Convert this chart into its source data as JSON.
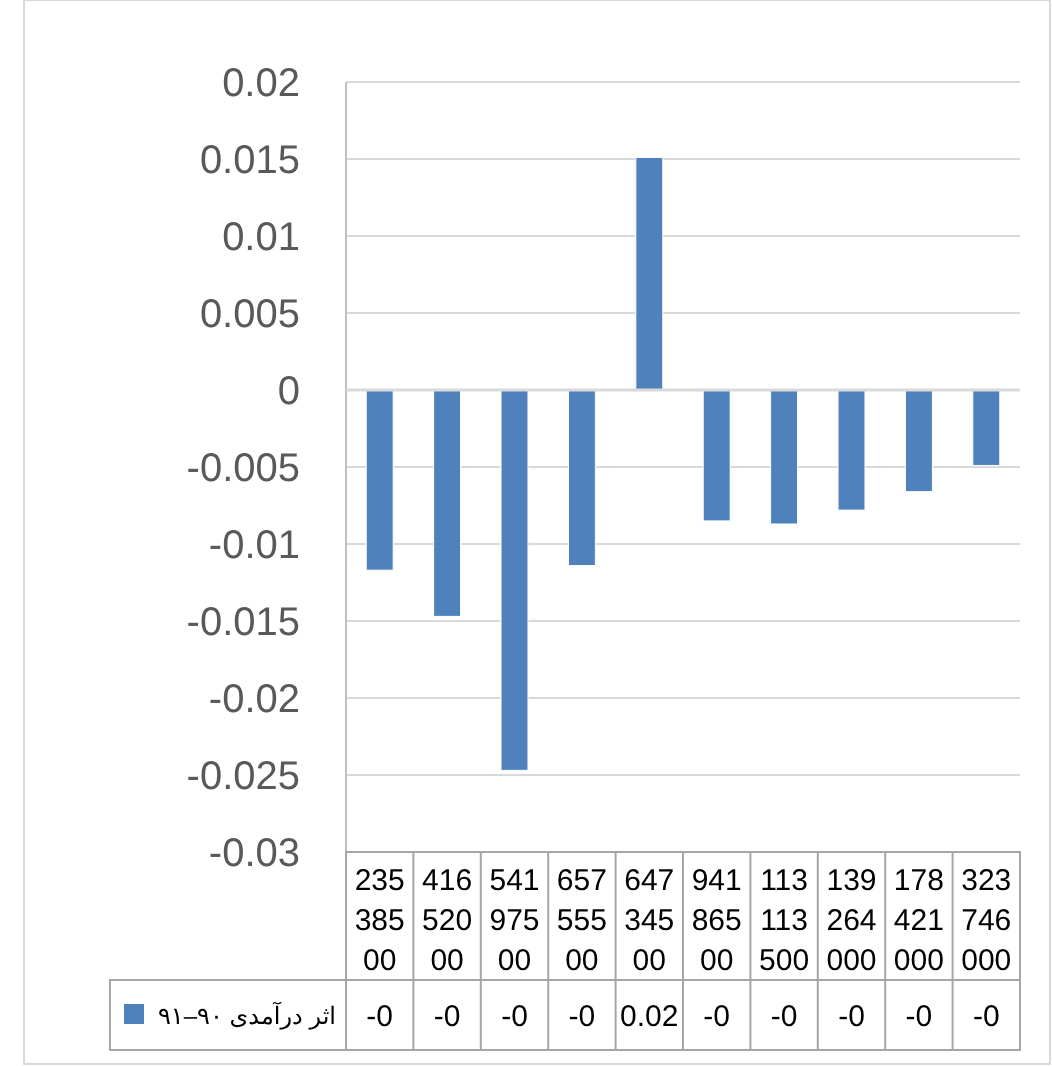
{
  "chart_data": {
    "type": "bar",
    "categories": [
      "23538500",
      "41652000",
      "54197500",
      "65755500",
      "64734500",
      "94186500",
      "113113500",
      "139264000",
      "178421000",
      "323746000"
    ],
    "series": [
      {
        "name": "اثر درآمدی ۹۰–۹۱",
        "color": "#4f81bd",
        "values": [
          -0.0117,
          -0.0147,
          -0.0247,
          -0.0114,
          0.0151,
          -0.0085,
          -0.0087,
          -0.0078,
          -0.0066,
          -0.0049
        ],
        "value_labels": [
          "-0",
          "-0",
          "-0",
          "-0",
          "0.02",
          "-0",
          "-0",
          "-0",
          "-0",
          "-0"
        ]
      }
    ],
    "ylim": [
      -0.03,
      0.02
    ],
    "yticks": [
      -0.03,
      -0.025,
      -0.02,
      -0.015,
      -0.01,
      -0.005,
      0,
      0.005,
      0.01,
      0.015,
      0.02
    ],
    "grid": "y",
    "legend": "bottom"
  }
}
